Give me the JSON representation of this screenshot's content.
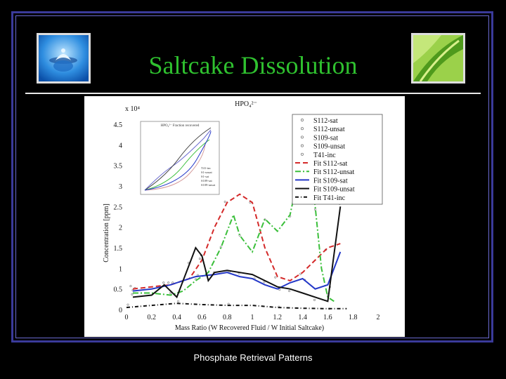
{
  "slide": {
    "title": "Saltcake Dissolution",
    "caption": "Phosphate Retrieval Patterns",
    "colors": {
      "title": "#2fc12f",
      "frame": "#3a3a9a",
      "background": "#000000"
    }
  },
  "chart_data": {
    "type": "line",
    "title": "HPO₄²⁻",
    "xlabel": "Mass Ratio (W Recovered Fluid / W Initial Saltcake)",
    "ylabel": "Concentration [ppm]",
    "y_multiplier": "x 10⁴",
    "xlim": [
      0,
      2
    ],
    "ylim": [
      0,
      4.5
    ],
    "xticks": [
      "0",
      "0.2",
      "0.4",
      "0.6",
      "0.8",
      "1",
      "1.2",
      "1.4",
      "1.6",
      "1.8",
      "2"
    ],
    "yticks": [
      "0",
      "0.5",
      "1",
      "1.5",
      "2",
      "2.5",
      "3",
      "3.5",
      "4",
      "4.5"
    ],
    "legend_position": "top-right",
    "legend": [
      "S112-sat",
      "S112-unsat",
      "S109-sat",
      "S109-unsat",
      "T41-inc",
      "Fit S112-sat",
      "Fit S112-unsat",
      "Fit S109-sat",
      "Fit S109-unsat",
      "Fit T41-inc"
    ],
    "series": [
      {
        "name": "Fit S112-sat",
        "color": "#d42a2a",
        "dash": "7,4",
        "x": [
          0.05,
          0.2,
          0.35,
          0.5,
          0.6,
          0.7,
          0.8,
          0.9,
          1.0,
          1.1,
          1.2,
          1.3,
          1.4,
          1.5,
          1.6,
          1.7
        ],
        "y": [
          0.5,
          0.55,
          0.6,
          0.75,
          1.2,
          2.0,
          2.6,
          2.8,
          2.6,
          1.5,
          0.8,
          0.7,
          0.9,
          1.2,
          1.5,
          1.6
        ]
      },
      {
        "name": "Fit S112-unsat",
        "color": "#3bbf3b",
        "dash": "8,3,2,3",
        "x": [
          0.05,
          0.2,
          0.35,
          0.45,
          0.55,
          0.65,
          0.75,
          0.85,
          0.9,
          1.0,
          1.1,
          1.2,
          1.3,
          1.35,
          1.4,
          1.45,
          1.5,
          1.55,
          1.6,
          1.65
        ],
        "y": [
          0.4,
          0.4,
          0.35,
          0.45,
          0.7,
          0.9,
          1.5,
          2.3,
          1.8,
          1.4,
          2.2,
          1.9,
          2.3,
          3.0,
          4.2,
          3.5,
          2.5,
          1.0,
          0.3,
          0.2
        ]
      },
      {
        "name": "Fit S109-sat",
        "color": "#2438c8",
        "dash": "",
        "x": [
          0.05,
          0.2,
          0.35,
          0.45,
          0.55,
          0.7,
          0.8,
          0.9,
          1.0,
          1.1,
          1.2,
          1.3,
          1.4,
          1.5,
          1.6,
          1.7
        ],
        "y": [
          0.45,
          0.5,
          0.6,
          0.7,
          0.8,
          0.85,
          0.9,
          0.8,
          0.75,
          0.6,
          0.5,
          0.65,
          0.75,
          0.5,
          0.6,
          1.4
        ]
      },
      {
        "name": "Fit S109-unsat",
        "color": "#111111",
        "dash": "",
        "x": [
          0.05,
          0.2,
          0.3,
          0.4,
          0.5,
          0.55,
          0.6,
          0.65,
          0.7,
          0.8,
          0.9,
          1.0,
          1.1,
          1.2,
          1.3,
          1.4,
          1.5,
          1.6,
          1.7
        ],
        "y": [
          0.3,
          0.35,
          0.6,
          0.3,
          1.1,
          1.5,
          1.3,
          0.7,
          0.9,
          0.95,
          0.9,
          0.85,
          0.7,
          0.55,
          0.5,
          0.4,
          0.3,
          0.2,
          2.5
        ]
      },
      {
        "name": "Fit T41-inc",
        "color": "#111111",
        "dash": "5,3,1,3",
        "x": [
          0.0,
          0.2,
          0.4,
          0.6,
          0.8,
          1.0,
          1.2,
          1.4,
          1.6,
          1.75
        ],
        "y": [
          0.05,
          0.1,
          0.15,
          0.12,
          0.1,
          0.1,
          0.05,
          0.03,
          0.02,
          0.02
        ]
      }
    ],
    "inset": {
      "title": "HPO₄²⁻ Fraction recovered",
      "legend": [
        "T41-inc",
        "S1-unsat",
        "S1-sat",
        "S109-sat",
        "S109-unsat"
      ]
    }
  }
}
